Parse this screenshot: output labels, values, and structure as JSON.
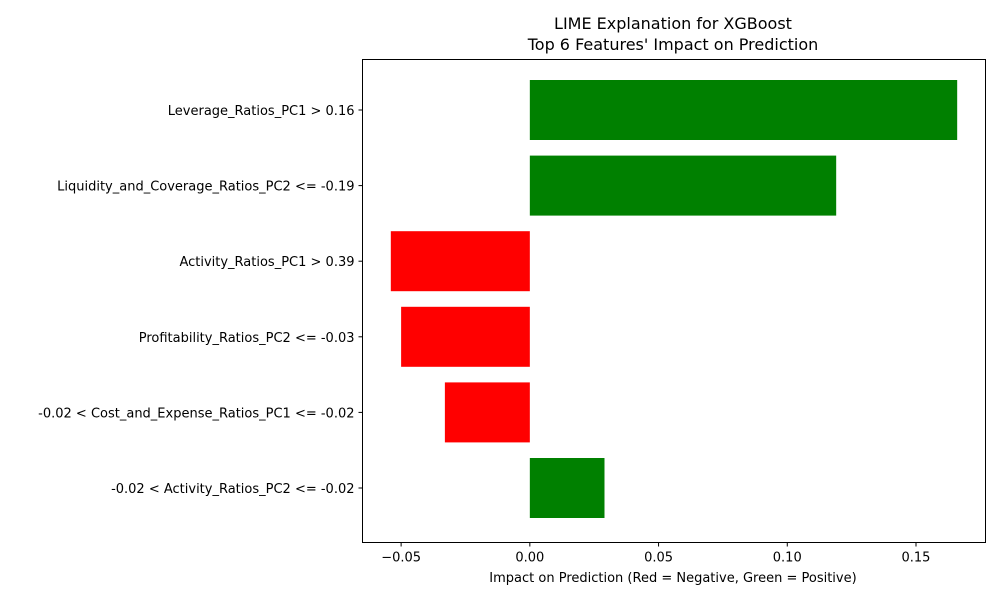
{
  "chart_data": {
    "type": "bar",
    "orientation": "horizontal",
    "title_lines": [
      "LIME Explanation for XGBoost",
      "Top 6 Features' Impact on Prediction"
    ],
    "xlabel": "Impact on Prediction (Red = Negative, Green = Positive)",
    "ylabel": "",
    "xlim": [
      -0.065,
      0.177
    ],
    "xticks": [
      -0.05,
      0.0,
      0.05,
      0.1,
      0.15
    ],
    "xtick_labels": [
      "−0.05",
      "0.00",
      "0.05",
      "0.10",
      "0.15"
    ],
    "grid": false,
    "bars": [
      {
        "label": "Leverage_Ratios_PC1 > 0.16",
        "value": 0.166
      },
      {
        "label": "Liquidity_and_Coverage_Ratios_PC2 <= -0.19",
        "value": 0.119
      },
      {
        "label": "Activity_Ratios_PC1 > 0.39",
        "value": -0.054
      },
      {
        "label": "Profitability_Ratios_PC2 <= -0.03",
        "value": -0.05
      },
      {
        "label": "-0.02 < Cost_and_Expense_Ratios_PC1 <= -0.02",
        "value": -0.033
      },
      {
        "label": "-0.02 < Activity_Ratios_PC2 <= -0.02",
        "value": 0.029
      }
    ],
    "colors": {
      "positive": "#008000",
      "negative": "#ff0000",
      "axis": "#000000"
    }
  }
}
